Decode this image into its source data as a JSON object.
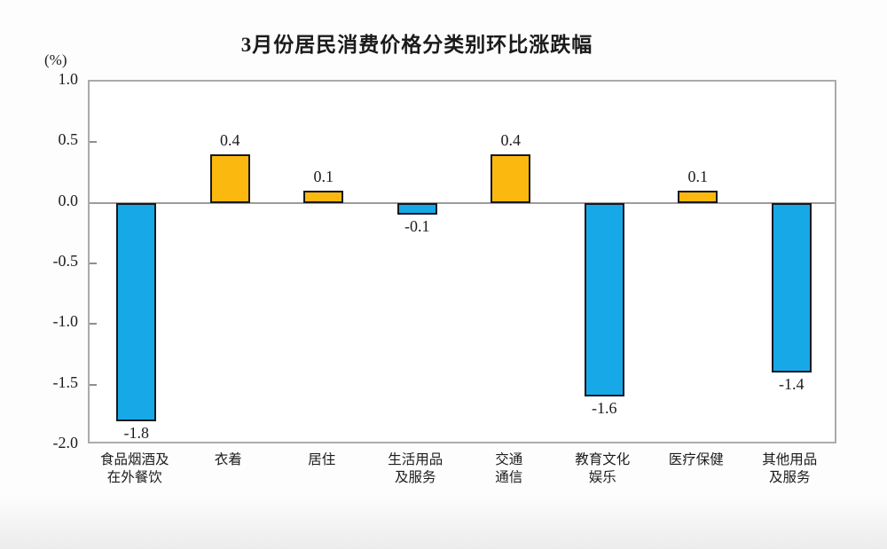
{
  "title": "3月份居民消费价格分类别环比涨跌幅",
  "unit_label": "(%)",
  "colors": {
    "positive_bar": "#FBB80F",
    "negative_bar": "#17A8E8",
    "bar_border": "#16191F",
    "frame_border": "#ABABAB",
    "zero_line": "#9C9C9C",
    "tick_mark": "#8F8F8F",
    "text": "#1C1C1C"
  },
  "chart_data": {
    "type": "bar",
    "title": "3月份居民消费价格分类别环比涨跌幅",
    "ylabel": "(%)",
    "categories": [
      "食品烟酒及\n在外餐饮",
      "衣着",
      "居住",
      "生活用品\n及服务",
      "交通\n通信",
      "教育文化\n娱乐",
      "医疗保健",
      "其他用品\n及服务"
    ],
    "values": [
      -1.8,
      0.4,
      0.1,
      -0.1,
      0.4,
      -1.6,
      0.1,
      -1.4
    ],
    "value_labels": [
      "-1.8",
      "0.4",
      "0.1",
      "-0.1",
      "0.4",
      "-1.6",
      "0.1",
      "-1.4"
    ],
    "yticks": [
      1.0,
      0.5,
      0.0,
      -0.5,
      -1.0,
      -1.5,
      -2.0
    ],
    "ytick_labels": [
      "1.0",
      "0.5",
      "0.0",
      "-0.5",
      "-1.0",
      "-1.5",
      "-2.0"
    ],
    "ylim": [
      -2.0,
      1.0
    ],
    "grid": false,
    "legend": false
  }
}
